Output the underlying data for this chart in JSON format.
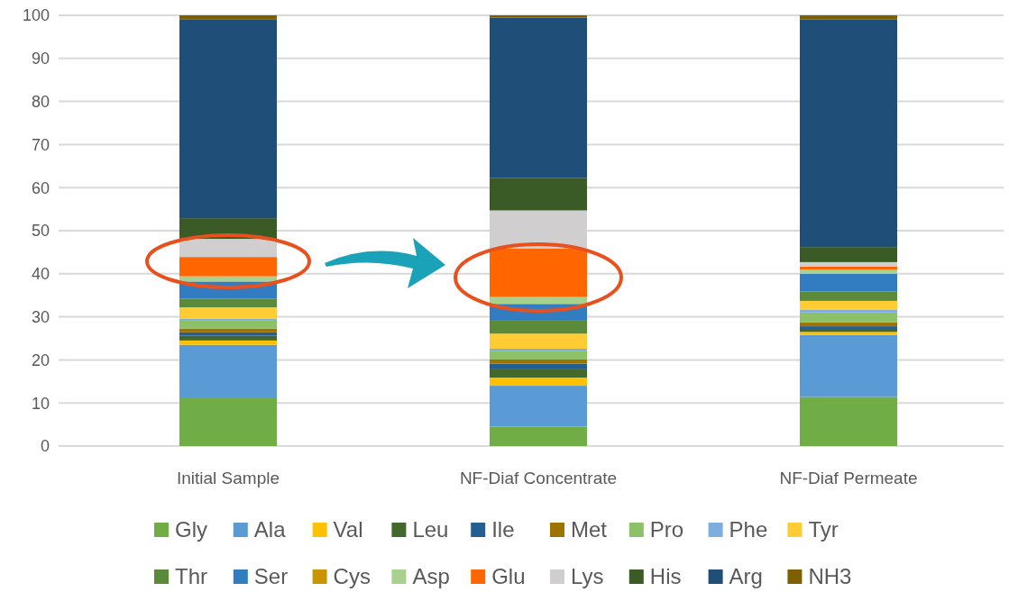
{
  "chart_data": {
    "type": "bar",
    "stacked": true,
    "categories": [
      "Initial Sample",
      "NF-Diaf Concentrate",
      "NF-Diaf Permeate"
    ],
    "ylim": [
      0,
      100
    ],
    "yticks": [
      0,
      10,
      20,
      30,
      40,
      50,
      60,
      70,
      80,
      90,
      100
    ],
    "grid": "y",
    "legend": "bottom",
    "series": [
      {
        "name": "Gly",
        "color": "#70ad47",
        "values": [
          11.3,
          4.5,
          11.4
        ]
      },
      {
        "name": "Ala",
        "color": "#5b9bd5",
        "values": [
          12.2,
          9.5,
          14.4
        ]
      },
      {
        "name": "Val",
        "color": "#ffc000",
        "values": [
          1.0,
          1.9,
          0.7
        ]
      },
      {
        "name": "Leu",
        "color": "#43682b",
        "values": [
          1.1,
          1.9,
          0.7
        ]
      },
      {
        "name": "Ile",
        "color": "#255e91",
        "values": [
          0.8,
          1.3,
          0.6
        ]
      },
      {
        "name": "Met",
        "color": "#9e7400",
        "values": [
          0.9,
          1.0,
          0.9
        ]
      },
      {
        "name": "Pro",
        "color": "#8cc168",
        "values": [
          1.8,
          1.9,
          2.3
        ]
      },
      {
        "name": "Phe",
        "color": "#7cafdd",
        "values": [
          0.5,
          0.6,
          0.6
        ]
      },
      {
        "name": "Tyr",
        "color": "#ffcd33",
        "values": [
          2.6,
          3.5,
          2.1
        ]
      },
      {
        "name": "Thr",
        "color": "#5a8a3a",
        "values": [
          2.0,
          3.0,
          2.2
        ]
      },
      {
        "name": "Ser",
        "color": "#327dc2",
        "values": [
          4.0,
          3.9,
          4.1
        ]
      },
      {
        "name": "Cys",
        "color": "#c99400",
        "values": [
          null,
          null,
          null
        ]
      },
      {
        "name": "Asp",
        "color": "#a9d18e",
        "values": [
          1.2,
          1.6,
          1.0
        ]
      },
      {
        "name": "Glu",
        "color": "#ff6600",
        "values": [
          4.5,
          11.3,
          0.7
        ]
      },
      {
        "name": "Lys",
        "color": "#d0cece",
        "values": [
          4.2,
          8.8,
          1.0
        ]
      },
      {
        "name": "His",
        "color": "#3a5a26",
        "values": [
          4.8,
          7.5,
          3.5
        ]
      },
      {
        "name": "Arg",
        "color": "#1f4e79",
        "values": [
          46.2,
          37.3,
          52.8
        ]
      },
      {
        "name": "NH3",
        "color": "#7f6000",
        "values": [
          0.9,
          0.5,
          1.0
        ]
      }
    ]
  }
}
